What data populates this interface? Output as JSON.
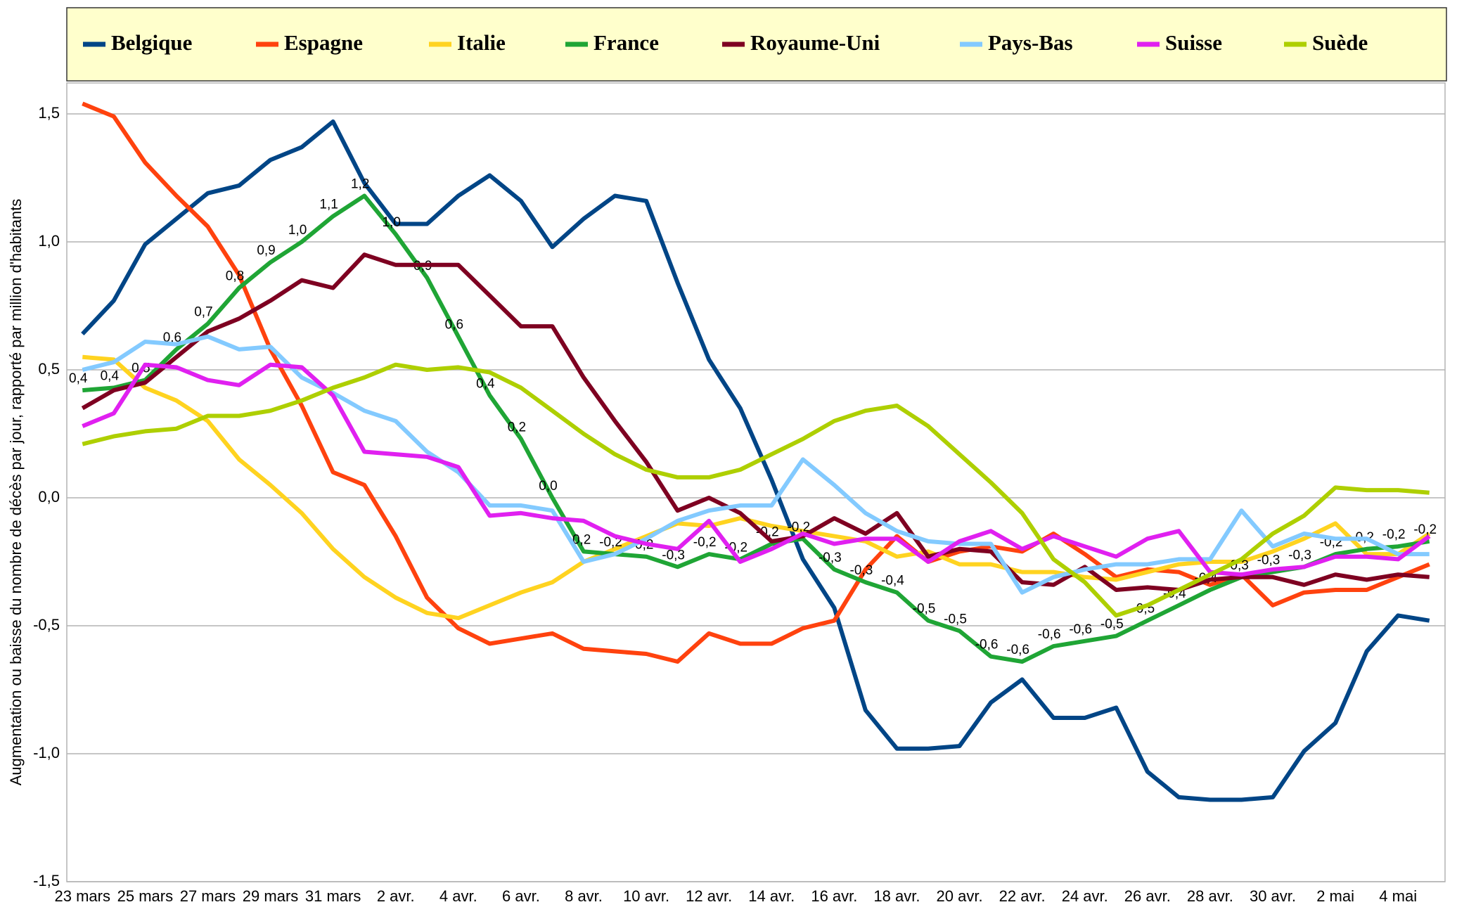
{
  "chart_data": {
    "type": "line",
    "y_label": "Augmentation ou baisse du nombre de décès par jour, rapporté par million d'habitants",
    "categories": [
      "23 mars",
      null,
      "25 mars",
      null,
      "27 mars",
      null,
      "29 mars",
      null,
      "31 mars",
      null,
      "2 avr.",
      null,
      "4 avr.",
      null,
      "6 avr.",
      null,
      "8 avr.",
      null,
      "10 avr.",
      null,
      "12 avr.",
      null,
      "14 avr.",
      null,
      "16 avr.",
      null,
      "18 avr.",
      null,
      "20 avr.",
      null,
      "22 avr.",
      null,
      "24 avr.",
      null,
      "26 avr.",
      null,
      "28 avr.",
      null,
      "30 avr.",
      null,
      "2 mai",
      null,
      "4 mai",
      null
    ],
    "ylim": [
      -1.5,
      1.5
    ],
    "yticks": [
      {
        "value": -1.5,
        "label": "-1,5"
      },
      {
        "value": -1,
        "label": "-1,0"
      },
      {
        "value": -0.5,
        "label": "-0,5"
      },
      {
        "value": 0,
        "label": "0,0"
      },
      {
        "value": 0.5,
        "label": "0,5"
      },
      {
        "value": 1,
        "label": "1,0"
      },
      {
        "value": 1.5,
        "label": "1,5"
      }
    ],
    "grid": true,
    "legend": "top",
    "series": [
      {
        "name": "Belgique",
        "color": "#004586",
        "values": [
          0.64,
          0.77,
          0.99,
          1.09,
          1.19,
          1.22,
          1.32,
          1.37,
          1.47,
          1.23,
          1.07,
          1.07,
          1.18,
          1.26,
          1.16,
          0.98,
          1.09,
          1.18,
          1.16,
          0.84,
          0.54,
          0.35,
          0.07,
          -0.24,
          -0.43,
          -0.83,
          -0.98,
          -0.98,
          -0.97,
          -0.8,
          -0.71,
          -0.86,
          -0.86,
          -0.82,
          -1.07,
          -1.17,
          -1.18,
          -1.18,
          -1.17,
          -0.99,
          -0.88,
          -0.6,
          -0.46,
          -0.48
        ]
      },
      {
        "name": "Espagne",
        "color": "#ff420e",
        "values": [
          1.54,
          1.49,
          1.31,
          1.18,
          1.06,
          0.87,
          0.58,
          0.36,
          0.1,
          0.05,
          -0.15,
          -0.39,
          -0.51,
          -0.57,
          -0.55,
          -0.53,
          -0.59,
          -0.6,
          -0.61,
          -0.64,
          -0.53,
          -0.57,
          -0.57,
          -0.51,
          -0.48,
          -0.28,
          -0.15,
          -0.25,
          -0.21,
          -0.19,
          -0.21,
          -0.14,
          -0.22,
          -0.31,
          -0.28,
          -0.29,
          -0.34,
          -0.3,
          -0.42,
          -0.37,
          -0.36,
          -0.36,
          -0.31,
          -0.26
        ]
      },
      {
        "name": "Italie",
        "color": "#ffd320",
        "values": [
          0.55,
          0.54,
          0.43,
          0.38,
          0.3,
          0.15,
          0.05,
          -0.06,
          -0.2,
          -0.31,
          -0.39,
          -0.45,
          -0.47,
          -0.42,
          -0.37,
          -0.33,
          -0.25,
          -0.2,
          -0.15,
          -0.1,
          -0.11,
          -0.08,
          -0.11,
          -0.13,
          -0.15,
          -0.17,
          -0.23,
          -0.21,
          -0.26,
          -0.26,
          -0.29,
          -0.29,
          -0.31,
          -0.32,
          -0.29,
          -0.26,
          -0.25,
          -0.25,
          -0.21,
          -0.16,
          -0.1,
          -0.22,
          -0.22,
          -0.14
        ]
      },
      {
        "name": "France",
        "color": "#1fa535",
        "values": [
          0.42,
          0.43,
          0.46,
          0.58,
          0.68,
          0.82,
          0.92,
          1.0,
          1.1,
          1.18,
          1.03,
          0.86,
          0.63,
          0.4,
          0.23,
          0.0,
          -0.21,
          -0.22,
          -0.23,
          -0.27,
          -0.22,
          -0.24,
          -0.18,
          -0.16,
          -0.28,
          -0.33,
          -0.37,
          -0.48,
          -0.52,
          -0.62,
          -0.64,
          -0.58,
          -0.56,
          -0.54,
          -0.48,
          -0.42,
          -0.36,
          -0.31,
          -0.29,
          -0.27,
          -0.22,
          -0.2,
          -0.19,
          -0.17
        ],
        "value_labels": [
          "0,4",
          "0,4",
          "0,5",
          "0,6",
          "0,7",
          "0,8",
          "0,9",
          "1,0",
          "1,1",
          "1,2",
          "1,0",
          "0,9",
          "0,6",
          "0,4",
          "0,2",
          "0,0",
          "-0,2",
          "-0,2",
          "-0,2",
          "-0,3",
          "-0,2",
          "-0,2",
          "-0,2",
          "-0,2",
          "-0,3",
          "-0,3",
          "-0,4",
          "-0,5",
          "-0,5",
          "-0,6",
          "-0,6",
          "-0,6",
          "-0,6",
          "-0,5",
          "-0,5",
          "-0,4",
          "-0,4",
          "-0,3",
          "-0,3",
          "-0,3",
          "-0,2",
          "-0,2",
          "-0,2",
          "-0,2"
        ]
      },
      {
        "name": "Royaume-Uni",
        "color": "#7e0021",
        "values": [
          0.35,
          0.42,
          0.45,
          0.55,
          0.65,
          0.7,
          0.77,
          0.85,
          0.82,
          0.95,
          0.91,
          0.91,
          0.91,
          0.79,
          0.67,
          0.67,
          0.47,
          0.3,
          0.14,
          -0.05,
          0.0,
          -0.06,
          -0.17,
          -0.15,
          -0.08,
          -0.14,
          -0.06,
          -0.23,
          -0.2,
          -0.21,
          -0.33,
          -0.34,
          -0.27,
          -0.36,
          -0.35,
          -0.36,
          -0.32,
          -0.31,
          -0.31,
          -0.34,
          -0.3,
          -0.32,
          -0.3,
          -0.31
        ]
      },
      {
        "name": "Pays-Bas",
        "color": "#83caff",
        "values": [
          0.5,
          0.53,
          0.61,
          0.6,
          0.63,
          0.58,
          0.59,
          0.47,
          0.41,
          0.34,
          0.3,
          0.18,
          0.1,
          -0.03,
          -0.03,
          -0.05,
          -0.25,
          -0.22,
          -0.16,
          -0.09,
          -0.05,
          -0.03,
          -0.03,
          0.15,
          0.05,
          -0.06,
          -0.13,
          -0.17,
          -0.18,
          -0.18,
          -0.37,
          -0.31,
          -0.28,
          -0.26,
          -0.26,
          -0.24,
          -0.24,
          -0.05,
          -0.19,
          -0.14,
          -0.16,
          -0.16,
          -0.22,
          -0.22
        ]
      },
      {
        "name": "Suisse",
        "color": "#e020f0",
        "values": [
          0.28,
          0.33,
          0.52,
          0.51,
          0.46,
          0.44,
          0.52,
          0.51,
          0.4,
          0.18,
          0.17,
          0.16,
          0.12,
          -0.07,
          -0.06,
          -0.08,
          -0.09,
          -0.15,
          -0.18,
          -0.2,
          -0.09,
          -0.25,
          -0.2,
          -0.14,
          -0.18,
          -0.16,
          -0.16,
          -0.25,
          -0.17,
          -0.13,
          -0.2,
          -0.15,
          -0.19,
          -0.23,
          -0.16,
          -0.13,
          -0.29,
          -0.3,
          -0.28,
          -0.27,
          -0.23,
          -0.23,
          -0.24,
          -0.15
        ]
      },
      {
        "name": "Suède",
        "color": "#aecf00",
        "values": [
          0.21,
          0.24,
          0.26,
          0.27,
          0.32,
          0.32,
          0.34,
          0.38,
          0.43,
          0.47,
          0.52,
          0.5,
          0.51,
          0.49,
          0.43,
          0.34,
          0.25,
          0.17,
          0.11,
          0.08,
          0.08,
          0.11,
          0.17,
          0.23,
          0.3,
          0.34,
          0.36,
          0.28,
          0.17,
          0.06,
          -0.06,
          -0.24,
          -0.33,
          -0.46,
          -0.42,
          -0.36,
          -0.3,
          -0.24,
          -0.14,
          -0.07,
          0.04,
          0.03,
          0.03,
          0.02
        ]
      }
    ]
  }
}
